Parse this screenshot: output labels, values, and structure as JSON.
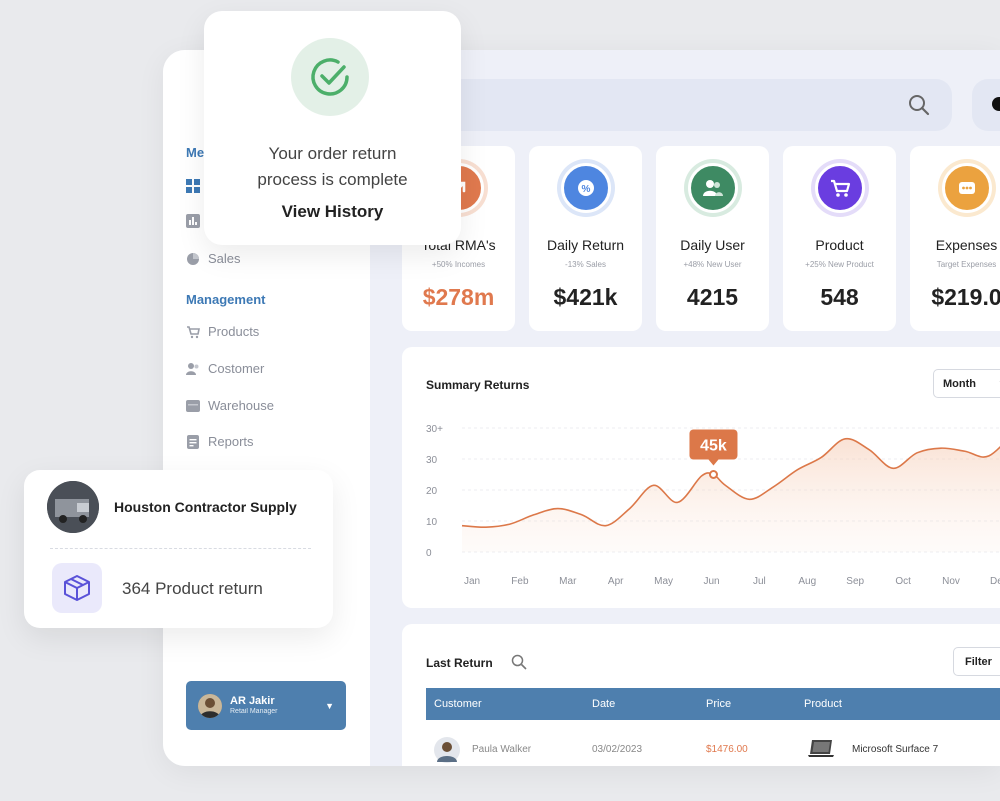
{
  "sidebar": {
    "menu_label": "Me",
    "items_top": [
      {
        "label": "",
        "icon": "grid-icon"
      },
      {
        "label": "",
        "icon": "bar-chart-icon"
      },
      {
        "label": "Sales",
        "icon": "pie-icon"
      }
    ],
    "management_label": "Management",
    "items": [
      {
        "label": "Products",
        "icon": "cart-icon"
      },
      {
        "label": "Costomer",
        "icon": "users-icon"
      },
      {
        "label": "Warehouse",
        "icon": "warehouse-icon"
      },
      {
        "label": "Reports",
        "icon": "report-icon"
      }
    ],
    "user": {
      "name": "AR Jakir",
      "role": "Retail Manager"
    }
  },
  "search": {
    "placeholder": "h"
  },
  "cards": [
    {
      "title": "Total RMA's",
      "sub": "+50% Incomes",
      "value": "$278m",
      "color": "#e0794e",
      "icon": "arrow-up-right-icon"
    },
    {
      "title": "Daily Return",
      "sub": "-13% Sales",
      "value": "$421k",
      "color": "#4e86e0",
      "icon": "discount-icon"
    },
    {
      "title": "Daily User",
      "sub": "+48% New User",
      "value": "4215",
      "color": "#3e8a63",
      "icon": "users-icon"
    },
    {
      "title": "Product",
      "sub": "+25% New Product",
      "value": "548",
      "color": "#6a3de0",
      "icon": "cart-icon"
    },
    {
      "title": "Expenses",
      "sub": "Target Expenses",
      "value": "$219.0",
      "color": "#eba23f",
      "icon": "more-icon"
    }
  ],
  "chart_data": {
    "type": "area",
    "title": "Summary Returns",
    "period": "Month",
    "categories": [
      "Jan",
      "Feb",
      "Mar",
      "Apr",
      "May",
      "Jun",
      "Jul",
      "Aug",
      "Sep",
      "Oct",
      "Nov",
      "Dec"
    ],
    "ytick_labels": [
      "0",
      "10",
      "20",
      "30",
      "30+"
    ],
    "ylim": [
      0,
      40
    ],
    "x": [
      0,
      0.5,
      1,
      1.5,
      2,
      2.5,
      3,
      3.5,
      4,
      4.5,
      5,
      5.25,
      5.5,
      6,
      6.5,
      7,
      7.5,
      8,
      8.5,
      9,
      9.5,
      10,
      10.5,
      11,
      11.6
    ],
    "values": [
      8.5,
      8.0,
      9.0,
      12.0,
      14.0,
      12.0,
      8.5,
      14.0,
      21.5,
      16.0,
      24.5,
      25.0,
      21.5,
      17.0,
      21.0,
      26.5,
      30.5,
      36.5,
      33.0,
      27.0,
      32.0,
      33.5,
      32.5,
      31.0,
      40.0
    ],
    "highlight": {
      "x": 5.25,
      "label": "45k"
    },
    "accent": "#dc7849"
  },
  "returns": {
    "title": "Last Return",
    "filter_label": "Filter",
    "columns": [
      "Customer",
      "Date",
      "Price",
      "Product"
    ],
    "rows": [
      {
        "customer": "Paula Walker",
        "date": "03/02/2023",
        "price": "$1476.00",
        "product": "Microsoft Surface 7"
      }
    ]
  },
  "toast": {
    "line1": "Your order return",
    "line2": "process is complete",
    "action": "View History"
  },
  "supply": {
    "name": "Houston Contractor Supply",
    "count_label": "364 Product return"
  }
}
